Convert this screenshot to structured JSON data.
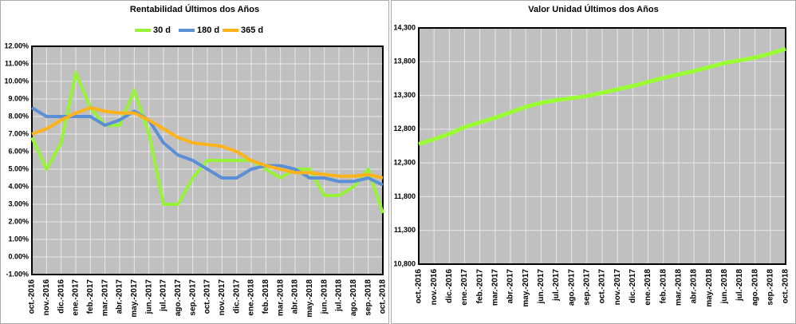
{
  "chart_data": [
    {
      "type": "line",
      "title": "Rentabilidad Últimos dos Años",
      "categories": [
        "oct.-2016",
        "nov.-2016",
        "dic.-2016",
        "ene.-2017",
        "feb.-2017",
        "mar.-2017",
        "abr.-2017",
        "may.-2017",
        "jun.-2017",
        "jul.-2017",
        "ago.-2017",
        "sep.-2017",
        "oct.-2017",
        "nov.-2017",
        "dic.-2017",
        "ene.-2018",
        "feb.-2018",
        "mar.-2018",
        "abr.-2018",
        "may.-2018",
        "jun.-2018",
        "jul.-2018",
        "ago.-2018",
        "sep.-2018",
        "oct.-2018"
      ],
      "series": [
        {
          "name": "30 d",
          "color": "#99f23a",
          "values": [
            6.8,
            5.0,
            6.5,
            10.5,
            8.5,
            7.5,
            7.5,
            9.5,
            7.0,
            3.0,
            3.0,
            4.5,
            5.5,
            5.5,
            5.5,
            5.5,
            5.0,
            4.5,
            5.0,
            5.0,
            3.5,
            3.5,
            4.0,
            5.0,
            2.5
          ]
        },
        {
          "name": "180 d",
          "color": "#5b8fd6",
          "values": [
            8.5,
            8.0,
            8.0,
            8.0,
            8.0,
            7.5,
            7.8,
            8.3,
            7.8,
            6.5,
            5.8,
            5.5,
            5.0,
            4.5,
            4.5,
            5.0,
            5.2,
            5.2,
            5.0,
            4.5,
            4.5,
            4.3,
            4.3,
            4.5,
            4.1
          ]
        },
        {
          "name": "365 d",
          "color": "#ffb31a",
          "values": [
            7.0,
            7.3,
            7.8,
            8.2,
            8.5,
            8.3,
            8.2,
            8.2,
            7.8,
            7.3,
            6.8,
            6.5,
            6.4,
            6.3,
            6.0,
            5.5,
            5.2,
            5.0,
            4.8,
            4.8,
            4.7,
            4.6,
            4.6,
            4.7,
            4.5
          ]
        }
      ],
      "ylim": [
        -1,
        12
      ],
      "yticks": [
        {
          "value": -1,
          "label": "-1.00%"
        },
        {
          "value": 0,
          "label": "0.00%"
        },
        {
          "value": 1,
          "label": "1.00%"
        },
        {
          "value": 2,
          "label": "2.00%"
        },
        {
          "value": 3,
          "label": "3.00%"
        },
        {
          "value": 4,
          "label": "4.00%"
        },
        {
          "value": 5,
          "label": "5.00%"
        },
        {
          "value": 6,
          "label": "6.00%"
        },
        {
          "value": 7,
          "label": "7.00%"
        },
        {
          "value": 8,
          "label": "8.00%"
        },
        {
          "value": 9,
          "label": "9.00%"
        },
        {
          "value": 10,
          "label": "10.00%"
        },
        {
          "value": 11,
          "label": "11.00%"
        },
        {
          "value": 12,
          "label": "12.00%"
        }
      ],
      "grid": true,
      "legend": "top"
    },
    {
      "type": "line",
      "title": "Valor Unidad Últimos dos Años",
      "categories": [
        "oct.-2016",
        "nov.-2016",
        "dic.-2016",
        "ene.-2017",
        "feb.-2017",
        "mar.-2017",
        "abr.-2017",
        "may.-2017",
        "jun.-2017",
        "jul.-2017",
        "ago.-2017",
        "sep.-2017",
        "oct.-2017",
        "nov.-2017",
        "dic.-2017",
        "ene.-2018",
        "feb.-2018",
        "mar.-2018",
        "abr.-2018",
        "may.-2018",
        "jun.-2018",
        "jul.-2018",
        "ago.-2018",
        "sep.-2018",
        "oct.-2018"
      ],
      "values": [
        12580,
        12650,
        12730,
        12830,
        12900,
        12970,
        13050,
        13130,
        13190,
        13230,
        13260,
        13290,
        13340,
        13390,
        13440,
        13500,
        13560,
        13610,
        13660,
        13720,
        13780,
        13820,
        13860,
        13920,
        13990
      ],
      "color": "#99ff33",
      "ylim": [
        10800,
        14300
      ],
      "yticks": [
        {
          "value": 10800,
          "label": "10,800"
        },
        {
          "value": 11300,
          "label": "11,300"
        },
        {
          "value": 11800,
          "label": "11,800"
        },
        {
          "value": 12300,
          "label": "12,300"
        },
        {
          "value": 12800,
          "label": "12,800"
        },
        {
          "value": 13300,
          "label": "13,300"
        },
        {
          "value": 13800,
          "label": "13,800"
        },
        {
          "value": 14300,
          "label": "14,300"
        }
      ],
      "grid": true
    }
  ]
}
